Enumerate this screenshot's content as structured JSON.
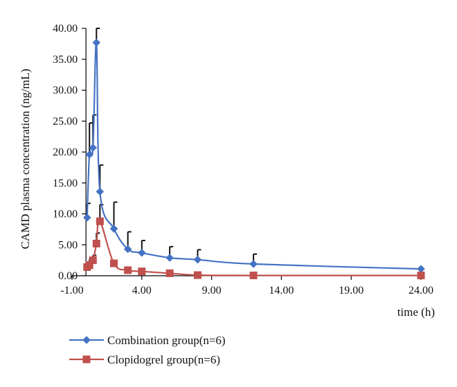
{
  "chart_data": {
    "type": "line",
    "xlabel": "time (h)",
    "ylabel": "CAMD plasma concentration (ng/mL)",
    "xlim": [
      -1.0,
      24.0
    ],
    "ylim": [
      0.0,
      40.0
    ],
    "x_ticks": [
      "-1.00",
      "4.00",
      "9.00",
      "14.00",
      "19.00",
      "24.00"
    ],
    "y_ticks": [
      "0.00",
      "5.00",
      "10.00",
      "15.00",
      "20.00",
      "25.00",
      "30.00",
      "35.00",
      "40.00"
    ],
    "x_tick_values": [
      -1,
      4,
      9,
      14,
      19,
      24
    ],
    "y_tick_values": [
      0,
      5,
      10,
      15,
      20,
      25,
      30,
      35,
      40
    ],
    "grid": false,
    "legend_position": "bottom-left",
    "series": [
      {
        "name": "Combination group(n=6)",
        "color": "#4472C4",
        "marker": "diamond",
        "x": [
          0.083,
          0.25,
          0.5,
          0.75,
          1.0,
          2.0,
          3.0,
          4.0,
          6.0,
          8.0,
          12.0,
          24.0
        ],
        "y": [
          9.4,
          19.6,
          20.7,
          37.7,
          13.6,
          7.6,
          4.3,
          3.7,
          2.9,
          2.6,
          1.9,
          1.1
        ],
        "error_upper": [
          11.7,
          24.7,
          26.0,
          40.0,
          17.9,
          11.9,
          7.1,
          5.7,
          4.7,
          4.2,
          3.5,
          0
        ]
      },
      {
        "name": "Clopidogrel group(n=6)",
        "color": "#C0504D",
        "marker": "square",
        "x": [
          0.083,
          0.25,
          0.5,
          0.75,
          1.0,
          2.0,
          3.0,
          4.0,
          6.0,
          8.0,
          12.0,
          24.0
        ],
        "y": [
          1.4,
          1.7,
          2.5,
          5.2,
          8.8,
          2.0,
          0.9,
          0.7,
          0.4,
          0.1,
          0.05,
          0.05
        ],
        "error_upper": [
          2.2,
          2.7,
          3.3,
          6.9,
          11.5,
          0,
          0,
          0,
          0,
          0,
          0,
          0
        ]
      }
    ]
  }
}
